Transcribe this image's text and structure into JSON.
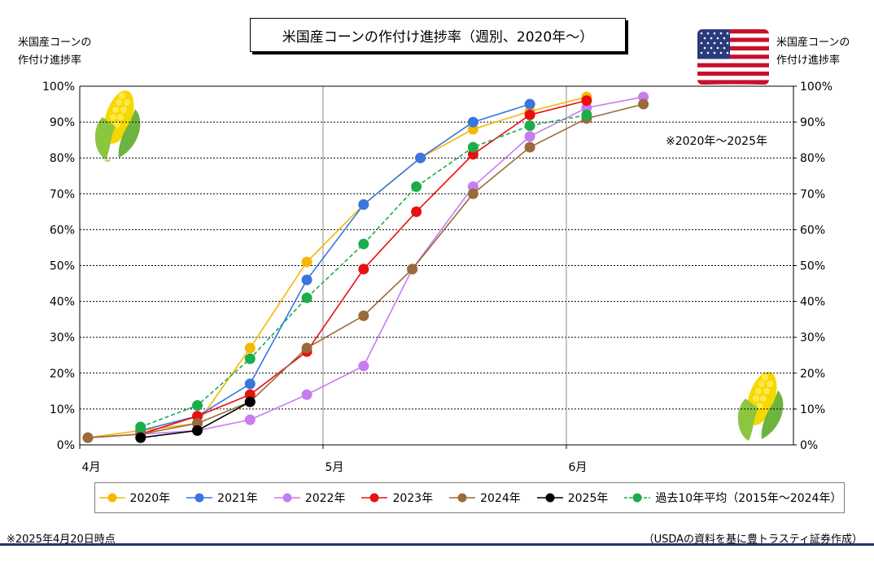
{
  "chart_data": {
    "type": "line",
    "title": "米国産コーンの作付け進捗率（週別、2020年～）",
    "ylabel_left": [
      "米国産コーンの",
      "作付け進捗率"
    ],
    "ylabel_right": [
      "米国産コーンの",
      "作付け進捗率"
    ],
    "x_ticks": [
      {
        "label": "4月",
        "day": 0
      },
      {
        "label": "5月",
        "day": 30
      },
      {
        "label": "6月",
        "day": 60
      }
    ],
    "xlim": [
      0,
      88
    ],
    "ylim": [
      0,
      100
    ],
    "y_ticks": [
      "0%",
      "10%",
      "20%",
      "30%",
      "40%",
      "50%",
      "60%",
      "70%",
      "80%",
      "90%",
      "100%"
    ],
    "y_tick_values": [
      0,
      10,
      20,
      30,
      40,
      50,
      60,
      70,
      80,
      90,
      100
    ],
    "grid": true,
    "legend_position": "bottom",
    "note": "※2020年～2025年",
    "series": [
      {
        "name": "2020年",
        "color": "#f5b800",
        "dashed": false,
        "x": [
          1,
          7.5,
          14.5,
          21,
          28,
          35,
          42,
          48.5,
          55.5,
          62.5
        ],
        "values": [
          2,
          4,
          6,
          27,
          51,
          67,
          80,
          88,
          93,
          97
        ]
      },
      {
        "name": "2021年",
        "color": "#3a75e0",
        "dashed": false,
        "x": [
          7.5,
          14.5,
          21,
          28,
          35,
          42,
          48.5,
          55.5
        ],
        "values": [
          4,
          8,
          17,
          46,
          67,
          80,
          90,
          95
        ]
      },
      {
        "name": "2022年",
        "color": "#c77cf0",
        "dashed": false,
        "x": [
          1,
          7.5,
          14.5,
          21,
          28,
          35,
          41,
          48.5,
          55.5,
          62.5,
          69.5
        ],
        "values": [
          2,
          3,
          4,
          7,
          14,
          22,
          49,
          72,
          86,
          94,
          97
        ]
      },
      {
        "name": "2023年",
        "color": "#e81010",
        "dashed": false,
        "x": [
          7.5,
          14.5,
          21,
          28,
          35,
          41.5,
          48.5,
          55.5,
          62.5
        ],
        "values": [
          3,
          8,
          14,
          26,
          49,
          65,
          81,
          92,
          96
        ]
      },
      {
        "name": "2024年",
        "color": "#9a6a3a",
        "dashed": false,
        "x": [
          1,
          7.5,
          14.5,
          21,
          28,
          35,
          41,
          48.5,
          55.5,
          62.5,
          69.5
        ],
        "values": [
          2,
          3,
          6,
          12,
          27,
          36,
          49,
          70,
          83,
          91,
          95
        ]
      },
      {
        "name": "2025年",
        "color": "#000000",
        "dashed": false,
        "x": [
          7.5,
          14.5,
          21
        ],
        "values": [
          2,
          4,
          12
        ]
      },
      {
        "name": "過去10年平均（2015年～2024年）",
        "color": "#1aad4a",
        "dashed": true,
        "x": [
          7.5,
          14.5,
          21,
          28,
          35,
          41.5,
          48.5,
          55.5,
          62.5
        ],
        "values": [
          5,
          11,
          24,
          41,
          56,
          72,
          83,
          89,
          92
        ]
      }
    ]
  },
  "footnote_left": "※2025年4月20日時点",
  "footnote_right": "（USDAの資料を基に豊トラスティ証券作成）"
}
